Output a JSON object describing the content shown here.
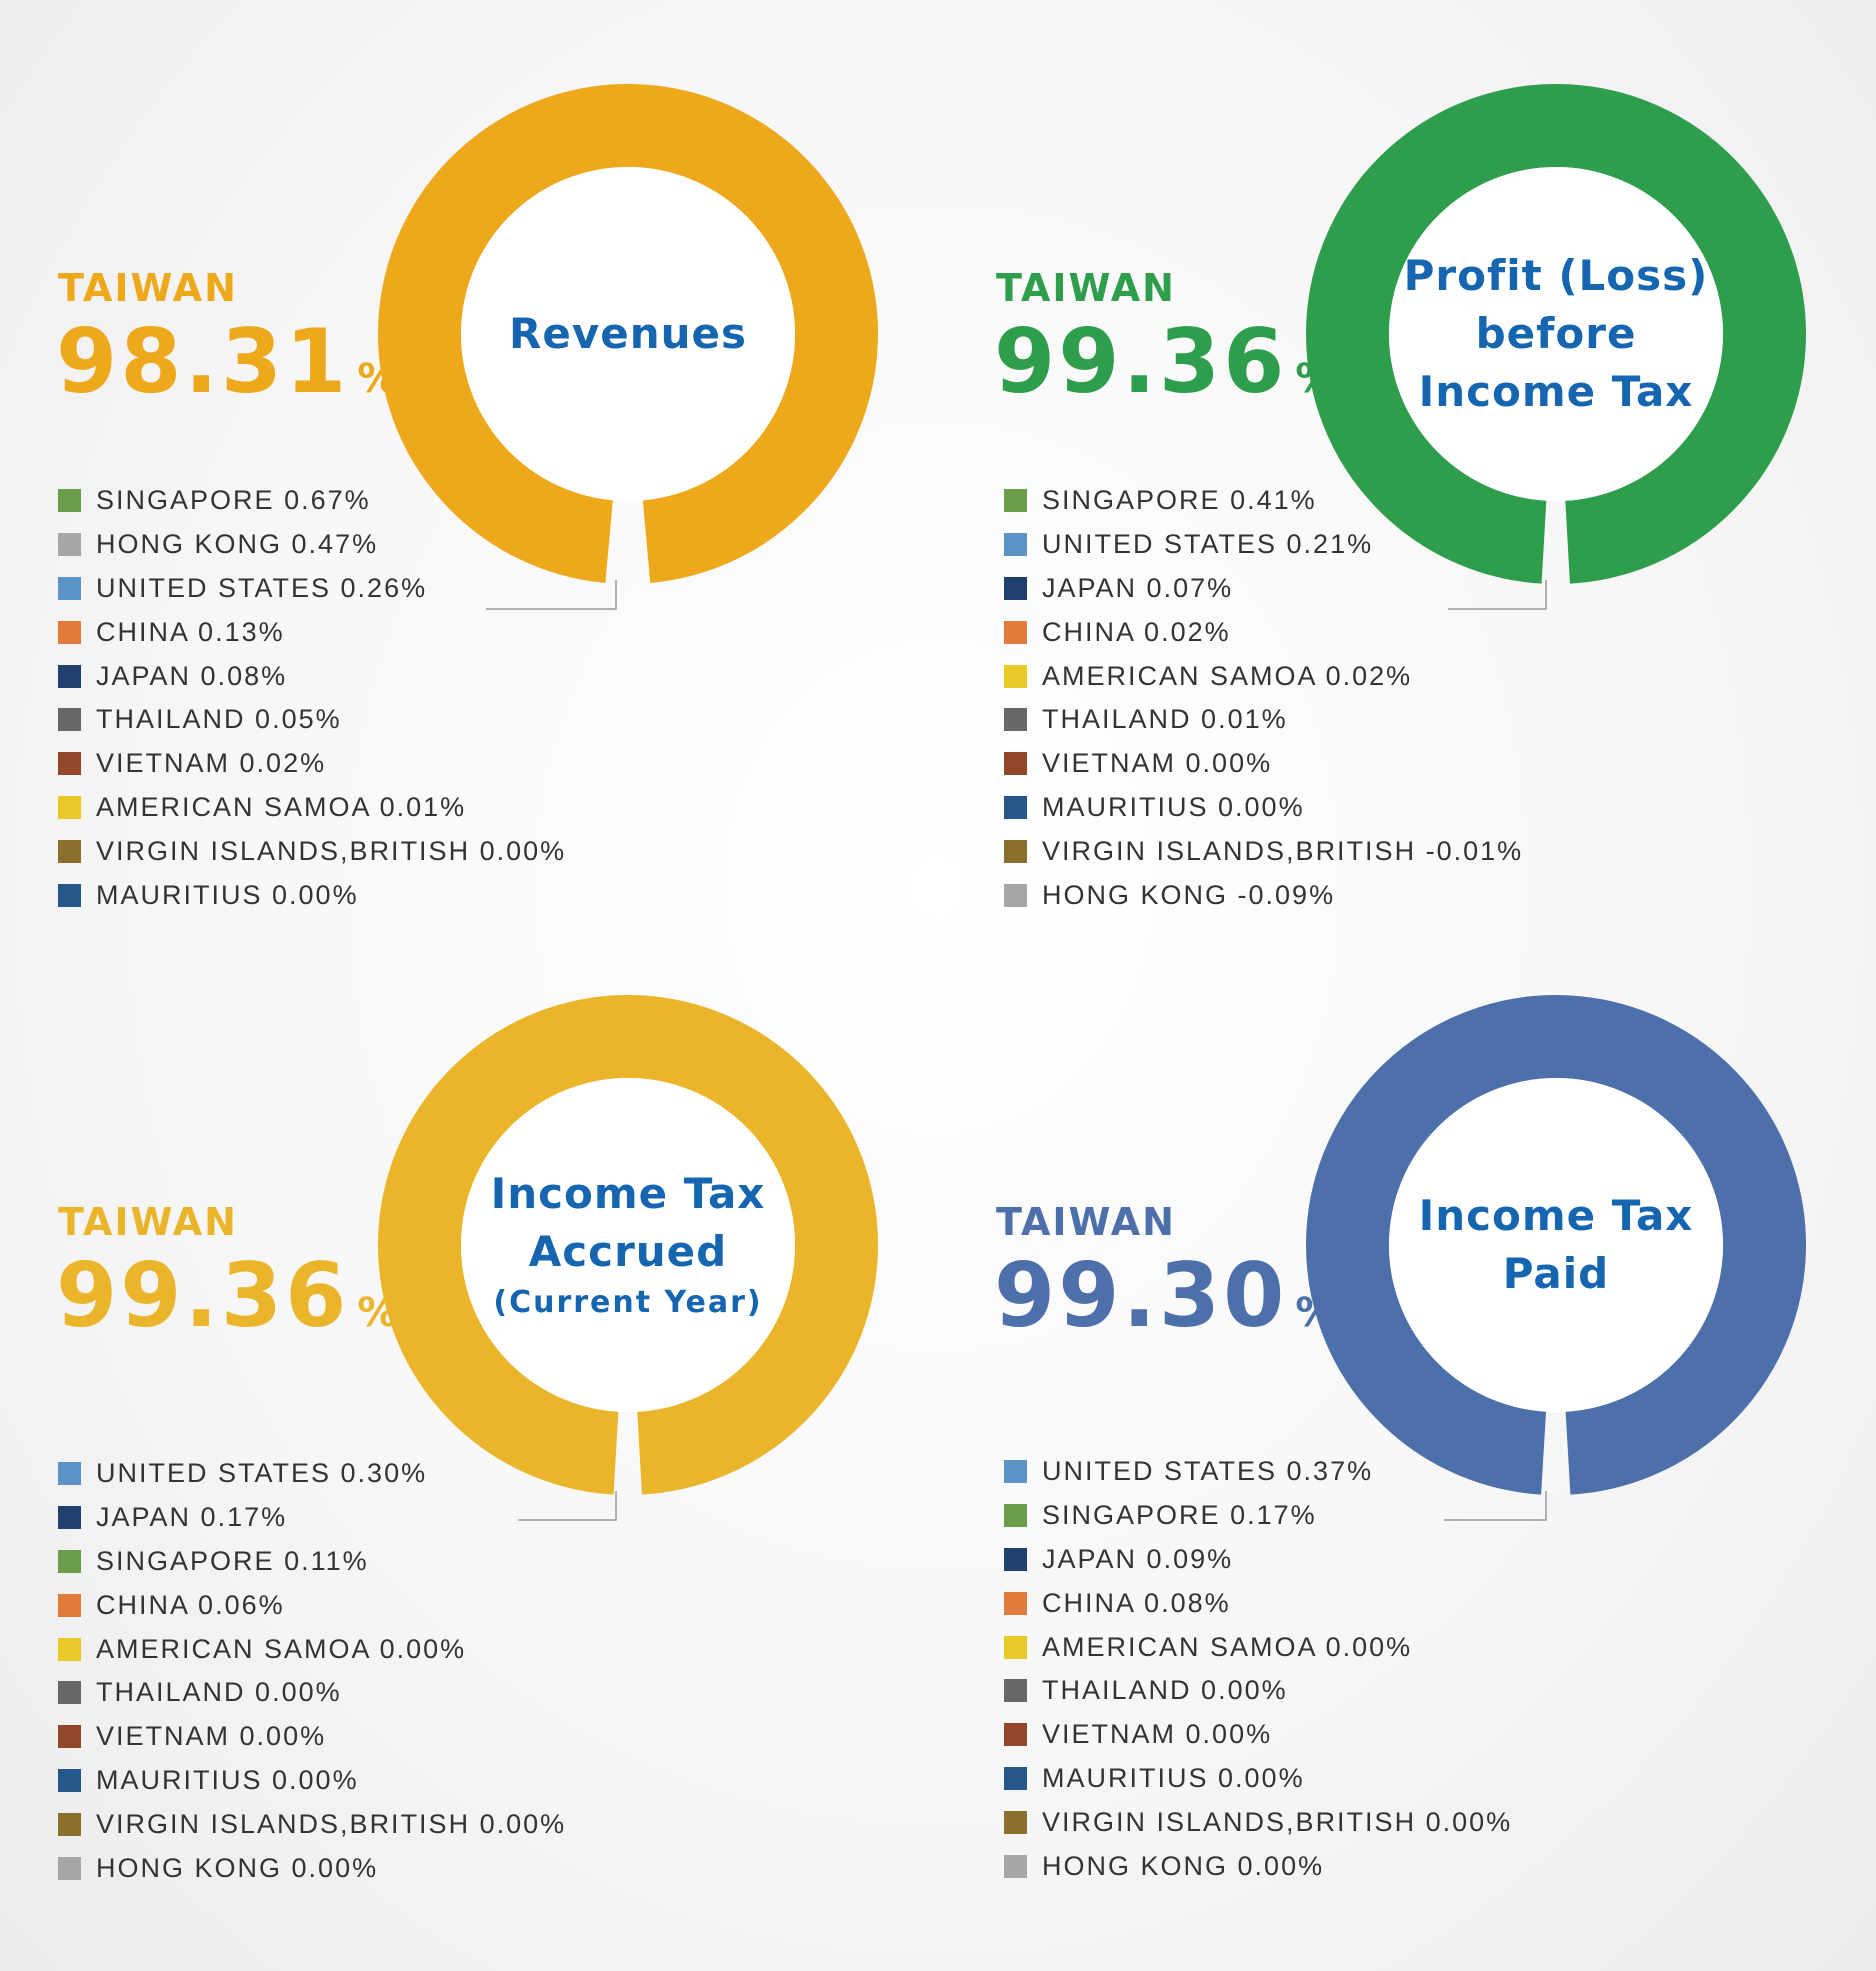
{
  "chart_data": [
    {
      "type": "pie",
      "title": "Revenues",
      "title_lines": [
        "Revenues"
      ],
      "subtitle": "",
      "primary": {
        "name": "TAIWAN",
        "value": 98.31,
        "display": "98.31",
        "unit": "%"
      },
      "accent_color": "#eea81c",
      "legend": [
        {
          "name": "SINGAPORE",
          "value": 0.67,
          "display": "0.67%",
          "color": "#6a9e4a"
        },
        {
          "name": "HONG KONG",
          "value": 0.47,
          "display": "0.47%",
          "color": "#a6a6a6"
        },
        {
          "name": "UNITED STATES",
          "value": 0.26,
          "display": "0.26%",
          "color": "#5b93c6"
        },
        {
          "name": "CHINA",
          "value": 0.13,
          "display": "0.13%",
          "color": "#e17b3c"
        },
        {
          "name": "JAPAN",
          "value": 0.08,
          "display": "0.08%",
          "color": "#20406e"
        },
        {
          "name": "THAILAND",
          "value": 0.05,
          "display": "0.05%",
          "color": "#686868"
        },
        {
          "name": "VIETNAM",
          "value": 0.02,
          "display": "0.02%",
          "color": "#93472a"
        },
        {
          "name": "AMERICAN SAMOA",
          "value": 0.01,
          "display": "0.01%",
          "color": "#e8c928"
        },
        {
          "name": "VIRGIN ISLANDS,BRITISH",
          "value": 0.0,
          "display": "0.00%",
          "color": "#8c6f2e"
        },
        {
          "name": "MAURITIUS",
          "value": 0.0,
          "display": "0.00%",
          "color": "#25578a"
        }
      ]
    },
    {
      "type": "pie",
      "title": "Profit (Loss) before Income Tax",
      "title_lines": [
        "Profit (Loss)",
        "before",
        "Income Tax"
      ],
      "subtitle": "",
      "primary": {
        "name": "TAIWAN",
        "value": 99.36,
        "display": "99.36",
        "unit": "%"
      },
      "accent_color": "#2f9e4c",
      "legend": [
        {
          "name": "SINGAPORE",
          "value": 0.41,
          "display": "0.41%",
          "color": "#6a9e4a"
        },
        {
          "name": "UNITED STATES",
          "value": 0.21,
          "display": "0.21%",
          "color": "#5b93c6"
        },
        {
          "name": "JAPAN",
          "value": 0.07,
          "display": "0.07%",
          "color": "#20406e"
        },
        {
          "name": "CHINA",
          "value": 0.02,
          "display": "0.02%",
          "color": "#e17b3c"
        },
        {
          "name": "AMERICAN SAMOA",
          "value": 0.02,
          "display": "0.02%",
          "color": "#e8c928"
        },
        {
          "name": "THAILAND",
          "value": 0.01,
          "display": "0.01%",
          "color": "#686868"
        },
        {
          "name": "VIETNAM",
          "value": 0.0,
          "display": "0.00%",
          "color": "#93472a"
        },
        {
          "name": "MAURITIUS",
          "value": 0.0,
          "display": "0.00%",
          "color": "#25578a"
        },
        {
          "name": "VIRGIN ISLANDS,BRITISH",
          "value": -0.01,
          "display": "-0.01%",
          "color": "#8c6f2e"
        },
        {
          "name": "HONG KONG",
          "value": -0.09,
          "display": "-0.09%",
          "color": "#a6a6a6"
        }
      ]
    },
    {
      "type": "pie",
      "title": "Income Tax Accrued",
      "title_lines": [
        "Income Tax",
        "Accrued"
      ],
      "subtitle": "(Current Year)",
      "primary": {
        "name": "TAIWAN",
        "value": 99.36,
        "display": "99.36",
        "unit": "%"
      },
      "accent_color": "#ebb52b",
      "legend": [
        {
          "name": "UNITED STATES",
          "value": 0.3,
          "display": "0.30%",
          "color": "#5b93c6"
        },
        {
          "name": "JAPAN",
          "value": 0.17,
          "display": "0.17%",
          "color": "#20406e"
        },
        {
          "name": "SINGAPORE",
          "value": 0.11,
          "display": "0.11%",
          "color": "#6a9e4a"
        },
        {
          "name": "CHINA",
          "value": 0.06,
          "display": "0.06%",
          "color": "#e17b3c"
        },
        {
          "name": "AMERICAN SAMOA",
          "value": 0.0,
          "display": "0.00%",
          "color": "#e8c928"
        },
        {
          "name": "THAILAND",
          "value": 0.0,
          "display": "0.00%",
          "color": "#686868"
        },
        {
          "name": "VIETNAM",
          "value": 0.0,
          "display": "0.00%",
          "color": "#93472a"
        },
        {
          "name": "MAURITIUS",
          "value": 0.0,
          "display": "0.00%",
          "color": "#25578a"
        },
        {
          "name": "VIRGIN ISLANDS,BRITISH",
          "value": 0.0,
          "display": "0.00%",
          "color": "#8c6f2e"
        },
        {
          "name": "HONG KONG",
          "value": 0.0,
          "display": "0.00%",
          "color": "#a6a6a6"
        }
      ]
    },
    {
      "type": "pie",
      "title": "Income Tax Paid",
      "title_lines": [
        "Income Tax",
        "Paid"
      ],
      "subtitle": "",
      "primary": {
        "name": "TAIWAN",
        "value": 99.3,
        "display": "99.30",
        "unit": "%"
      },
      "accent_color": "#4d70aa",
      "legend": [
        {
          "name": "UNITED STATES",
          "value": 0.37,
          "display": "0.37%",
          "color": "#5b93c6"
        },
        {
          "name": "SINGAPORE",
          "value": 0.17,
          "display": "0.17%",
          "color": "#6a9e4a"
        },
        {
          "name": "JAPAN",
          "value": 0.09,
          "display": "0.09%",
          "color": "#20406e"
        },
        {
          "name": "CHINA",
          "value": 0.08,
          "display": "0.08%",
          "color": "#e17b3c"
        },
        {
          "name": "AMERICAN SAMOA",
          "value": 0.0,
          "display": "0.00%",
          "color": "#e8c928"
        },
        {
          "name": "THAILAND",
          "value": 0.0,
          "display": "0.00%",
          "color": "#686868"
        },
        {
          "name": "VIETNAM",
          "value": 0.0,
          "display": "0.00%",
          "color": "#93472a"
        },
        {
          "name": "MAURITIUS",
          "value": 0.0,
          "display": "0.00%",
          "color": "#25578a"
        },
        {
          "name": "VIRGIN ISLANDS,BRITISH",
          "value": 0.0,
          "display": "0.00%",
          "color": "#8c6f2e"
        },
        {
          "name": "HONG KONG",
          "value": 0.0,
          "display": "0.00%",
          "color": "#a6a6a6"
        }
      ]
    }
  ]
}
